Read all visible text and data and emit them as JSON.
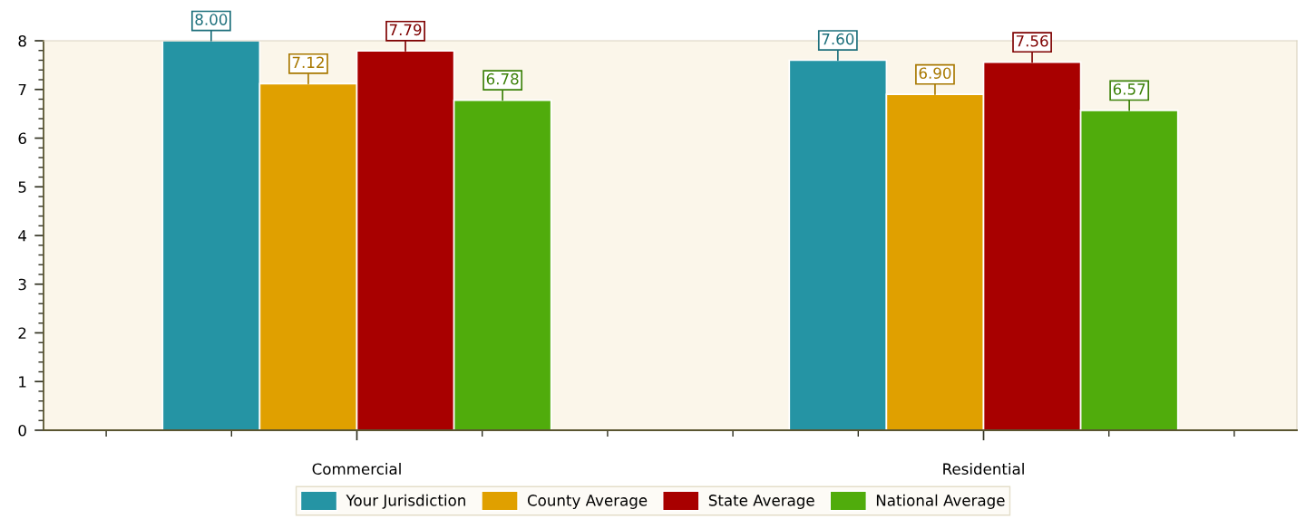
{
  "chart_data": {
    "type": "bar",
    "categories": [
      "Commercial",
      "Residential"
    ],
    "series": [
      {
        "name": "Your Jurisdiction",
        "color": "#2594a4",
        "values": [
          8.0,
          7.6
        ],
        "value_labels": [
          "8.00",
          "7.60"
        ]
      },
      {
        "name": "County Average",
        "color": "#e0a000",
        "values": [
          7.12,
          6.9
        ],
        "value_labels": [
          "7.12",
          "6.90"
        ]
      },
      {
        "name": "State Average",
        "color": "#a80000",
        "values": [
          7.79,
          7.56
        ],
        "value_labels": [
          "7.79",
          "7.56"
        ]
      },
      {
        "name": "National Average",
        "color": "#50ac0c",
        "values": [
          6.78,
          6.57
        ],
        "value_labels": [
          "6.78",
          "6.57"
        ]
      }
    ],
    "ylim": [
      0,
      8
    ],
    "yticks": [
      0,
      1,
      2,
      3,
      4,
      5,
      6,
      7,
      8
    ],
    "legend": "bottom",
    "grid": false
  }
}
